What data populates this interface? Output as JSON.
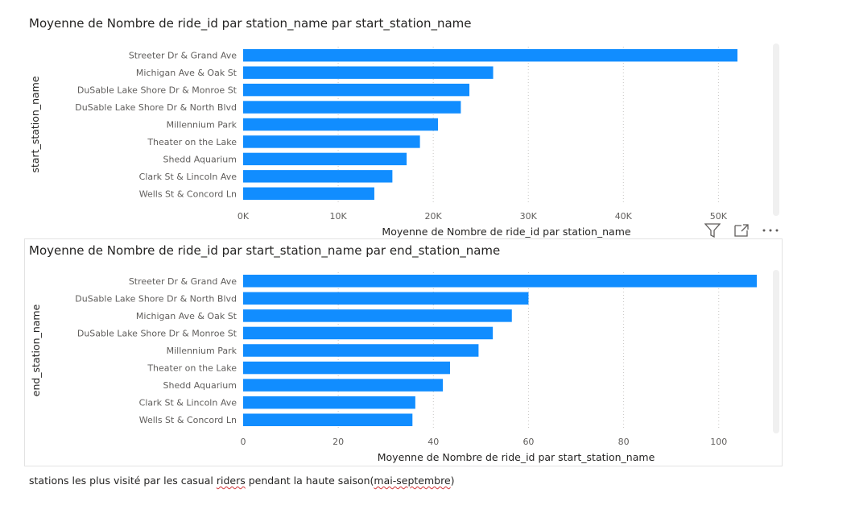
{
  "chart_data": [
    {
      "type": "bar",
      "orientation": "horizontal",
      "title": "Moyenne de Nombre de ride_id par station_name par start_station_name",
      "xlabel": "Moyenne de Nombre de ride_id par station_name",
      "ylabel": "start_station_name",
      "xlim": [
        0,
        52000
      ],
      "xticks": [
        0,
        10000,
        20000,
        30000,
        40000,
        50000
      ],
      "xtick_labels": [
        "0K",
        "10K",
        "20K",
        "30K",
        "40K",
        "50K"
      ],
      "grid": true,
      "bar_color": "#118DFF",
      "categories": [
        "Streeter Dr & Grand Ave",
        "Michigan Ave & Oak St",
        "DuSable Lake Shore Dr & Monroe St",
        "DuSable Lake Shore Dr & North Blvd",
        "Millennium Park",
        "Theater on the Lake",
        "Shedd Aquarium",
        "Clark St & Lincoln Ave",
        "Wells St & Concord Ln"
      ],
      "values": [
        52000,
        26300,
        23800,
        22900,
        20500,
        18600,
        17200,
        15700,
        13800
      ]
    },
    {
      "type": "bar",
      "orientation": "horizontal",
      "title": "Moyenne de Nombre de ride_id par start_station_name par end_station_name",
      "xlabel": "Moyenne de Nombre de ride_id par start_station_name",
      "ylabel": "end_station_name",
      "xlim": [
        0,
        108
      ],
      "xticks": [
        0,
        20,
        40,
        60,
        80,
        100
      ],
      "xtick_labels": [
        "0",
        "20",
        "40",
        "60",
        "80",
        "100"
      ],
      "grid": true,
      "bar_color": "#118DFF",
      "categories": [
        "Streeter Dr & Grand Ave",
        "DuSable Lake Shore Dr & North Blvd",
        "Michigan Ave & Oak St",
        "DuSable Lake Shore Dr & Monroe St",
        "Millennium Park",
        "Theater on the Lake",
        "Shedd Aquarium",
        "Clark St & Lincoln Ave",
        "Wells St & Concord Ln"
      ],
      "values": [
        108,
        60,
        56.5,
        52.5,
        49.5,
        43.5,
        42,
        36.2,
        35.6
      ]
    }
  ],
  "icons": {
    "filter": "filter-icon",
    "focus": "focus-mode-icon",
    "more": "more-options-icon"
  },
  "caption": {
    "part1": "stations les plus visité par les casual ",
    "riders": "riders",
    "part2": " pendant la haute saison(",
    "months": "mai-septembre",
    "part3": ")"
  }
}
